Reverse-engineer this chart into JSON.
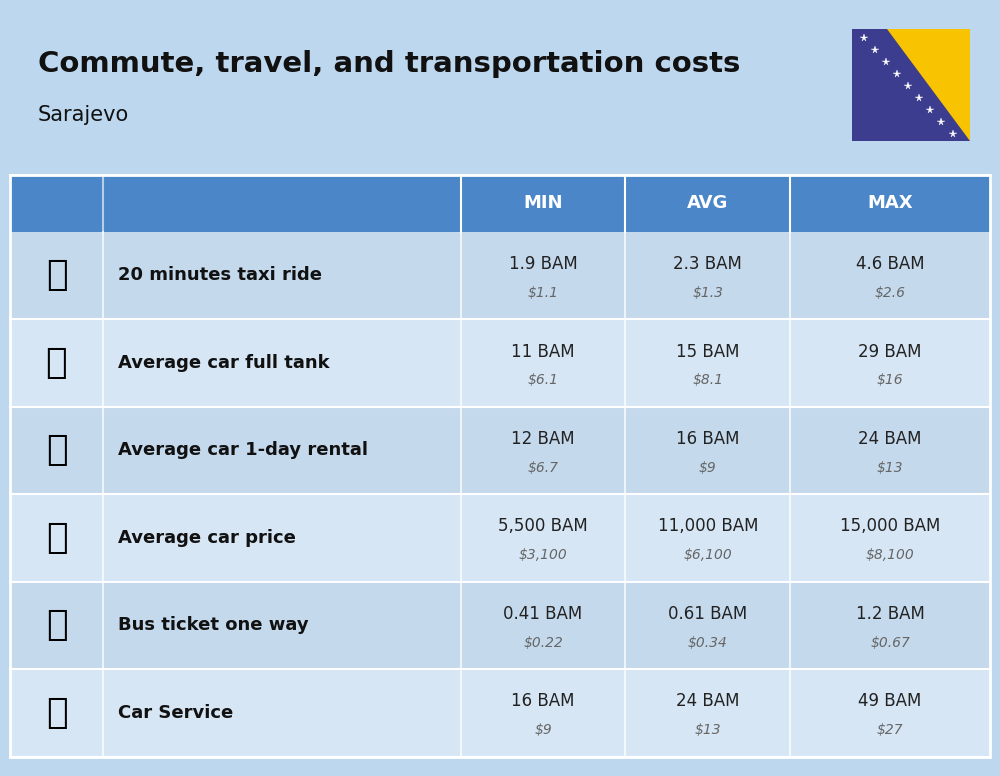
{
  "title": "Commute, travel, and transportation costs",
  "subtitle": "Sarajevo",
  "background_color": "#BDD7EE",
  "header_bg_color": "#4A86C8",
  "row_bg_even": "#C5D9ED",
  "row_bg_odd": "#D6E6F5",
  "header_text_color": "#FFFFFF",
  "col_headers": [
    "MIN",
    "AVG",
    "MAX"
  ],
  "rows": [
    {
      "label": "20 minutes taxi ride",
      "min_bam": "1.9 BAM",
      "min_usd": "$1.1",
      "avg_bam": "2.3 BAM",
      "avg_usd": "$1.3",
      "max_bam": "4.6 BAM",
      "max_usd": "$2.6"
    },
    {
      "label": "Average car full tank",
      "min_bam": "11 BAM",
      "min_usd": "$6.1",
      "avg_bam": "15 BAM",
      "avg_usd": "$8.1",
      "max_bam": "29 BAM",
      "max_usd": "$16"
    },
    {
      "label": "Average car 1-day rental",
      "min_bam": "12 BAM",
      "min_usd": "$6.7",
      "avg_bam": "16 BAM",
      "avg_usd": "$9",
      "max_bam": "24 BAM",
      "max_usd": "$13"
    },
    {
      "label": "Average car price",
      "min_bam": "5,500 BAM",
      "min_usd": "$3,100",
      "avg_bam": "11,000 BAM",
      "avg_usd": "$6,100",
      "max_bam": "15,000 BAM",
      "max_usd": "$8,100"
    },
    {
      "label": "Bus ticket one way",
      "min_bam": "0.41 BAM",
      "min_usd": "$0.22",
      "avg_bam": "0.61 BAM",
      "avg_usd": "$0.34",
      "max_bam": "1.2 BAM",
      "max_usd": "$0.67"
    },
    {
      "label": "Car Service",
      "min_bam": "16 BAM",
      "min_usd": "$9",
      "avg_bam": "24 BAM",
      "avg_usd": "$13",
      "max_bam": "49 BAM",
      "max_usd": "$27"
    }
  ],
  "row_emojis": [
    "🚖",
    "⛽️",
    "🚙",
    "🚗",
    "🚌",
    "🚚"
  ],
  "flag_blue": "#3D3D8F",
  "flag_yellow": "#F8C300"
}
